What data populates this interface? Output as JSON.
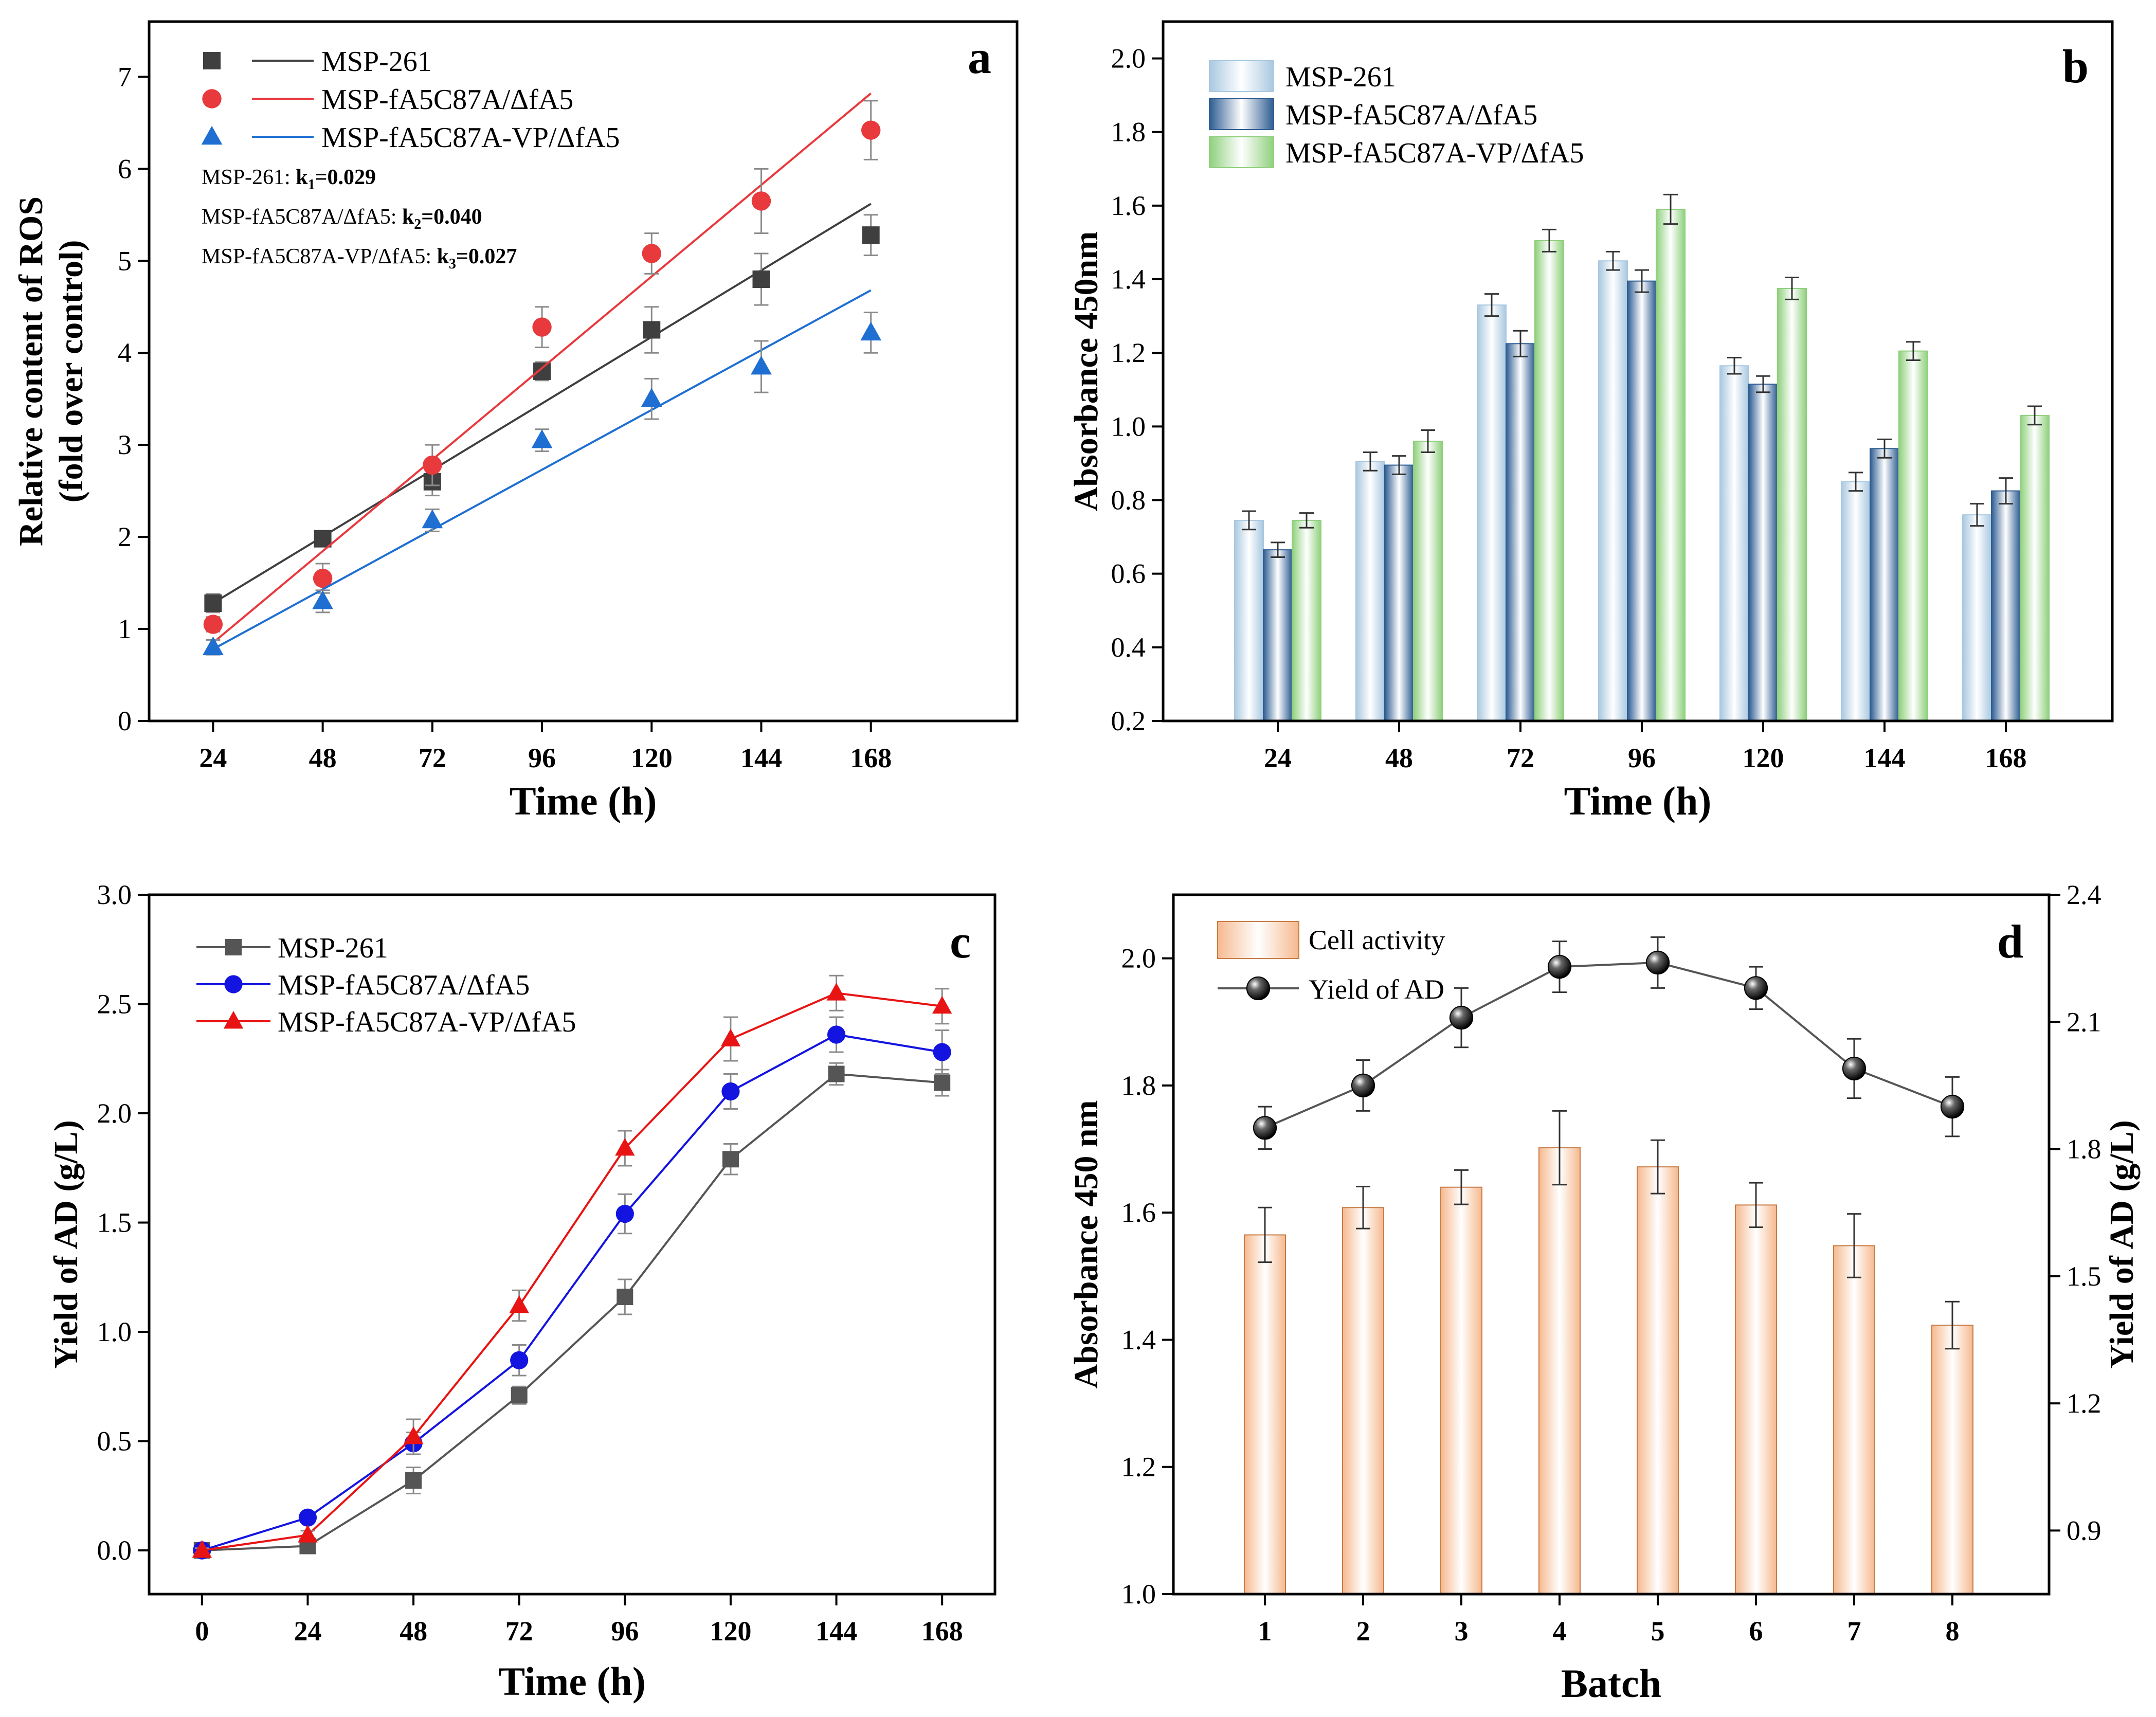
{
  "chart_data": [
    {
      "panel": "a",
      "type": "scatter",
      "title": "",
      "xlabel": "Time (h)",
      "ylabel": [
        "Relative content of ROS",
        "(fold over control)"
      ],
      "xlim": [
        10,
        200
      ],
      "ylim": [
        0,
        7.6
      ],
      "xticks": [
        24,
        48,
        72,
        96,
        120,
        144,
        168
      ],
      "yticks": [
        0,
        1,
        2,
        3,
        4,
        5,
        6,
        7
      ],
      "legend_position": "top-left",
      "series": [
        {
          "name": "MSP-261",
          "color": "#3f3f3f",
          "marker": "square",
          "x": [
            24,
            48,
            72,
            96,
            120,
            144,
            168
          ],
          "y": [
            1.28,
            1.98,
            2.6,
            3.8,
            4.25,
            4.8,
            5.28
          ],
          "err": [
            0.1,
            0.08,
            0.15,
            0.1,
            0.25,
            0.28,
            0.22
          ],
          "fit": [
            1.28,
            5.62
          ]
        },
        {
          "name": "MSP-fA5C87A/ΔfA5",
          "color": "#e8393d",
          "marker": "circle",
          "x": [
            24,
            48,
            72,
            96,
            120,
            144,
            168
          ],
          "y": [
            1.05,
            1.55,
            2.78,
            4.28,
            5.08,
            5.65,
            6.42
          ],
          "err": [
            0.08,
            0.16,
            0.22,
            0.22,
            0.22,
            0.35,
            0.32
          ],
          "fit": [
            0.85,
            6.82
          ]
        },
        {
          "name": "MSP-fA5C87A-VP/ΔfA5",
          "color": "#1f6fd2",
          "marker": "triangle",
          "x": [
            24,
            48,
            72,
            96,
            120,
            144,
            168
          ],
          "y": [
            0.8,
            1.3,
            2.18,
            3.05,
            3.5,
            3.85,
            4.22
          ],
          "err": [
            0.08,
            0.12,
            0.12,
            0.12,
            0.22,
            0.28,
            0.22
          ],
          "fit": [
            0.78,
            4.68
          ]
        }
      ],
      "annotations": [
        {
          "prefix": "MSP-261: ",
          "k": "k",
          "sub": "1",
          "value": "=0.029"
        },
        {
          "prefix": "MSP-fA5C87A/ΔfA5: ",
          "k": "k",
          "sub": "2",
          "value": "=0.040"
        },
        {
          "prefix": "MSP-fA5C87A-VP/ΔfA5: ",
          "k": "k",
          "sub": "3",
          "value": "=0.027"
        }
      ]
    },
    {
      "panel": "b",
      "type": "bar",
      "title": "",
      "xlabel": "Time (h)",
      "ylabel": "Absorbance 450nm",
      "ylim": [
        0.2,
        2.1
      ],
      "yticks": [
        "0.2",
        "0.4",
        "0.6",
        "0.8",
        "1.0",
        "1.2",
        "1.4",
        "1.6",
        "1.8",
        "2.0"
      ],
      "categories": [
        "24",
        "48",
        "72",
        "96",
        "120",
        "144",
        "168"
      ],
      "legend_position": "top-left",
      "series": [
        {
          "name": "MSP-261",
          "color": "#a9c8e0",
          "values": [
            0.745,
            0.905,
            1.33,
            1.45,
            1.165,
            0.85,
            0.76
          ],
          "err": [
            0.025,
            0.025,
            0.03,
            0.025,
            0.022,
            0.025,
            0.03
          ]
        },
        {
          "name": "MSP-fA5C87A/ΔfA5",
          "color": "#2d5c92",
          "values": [
            0.665,
            0.895,
            1.225,
            1.395,
            1.115,
            0.94,
            0.825
          ],
          "err": [
            0.02,
            0.025,
            0.035,
            0.03,
            0.022,
            0.025,
            0.035
          ]
        },
        {
          "name": "MSP-fA5C87A-VP/ΔfA5",
          "color": "#8fd07c",
          "values": [
            0.745,
            0.96,
            1.505,
            1.59,
            1.375,
            1.205,
            1.03
          ],
          "err": [
            0.02,
            0.03,
            0.03,
            0.04,
            0.03,
            0.025,
            0.025
          ]
        }
      ]
    },
    {
      "panel": "c",
      "type": "line",
      "title": "",
      "xlabel": "Time (h)",
      "ylabel": "Yield of AD (g/L)",
      "xlim": [
        -12,
        180
      ],
      "ylim": [
        -0.2,
        3.0
      ],
      "xticks": [
        0,
        24,
        48,
        72,
        96,
        120,
        144,
        168
      ],
      "yticks": [
        "0.0",
        "0.5",
        "1.0",
        "1.5",
        "2.0",
        "2.5",
        "3.0"
      ],
      "legend_position": "top-left",
      "series": [
        {
          "name": "MSP-261",
          "color": "#555555",
          "marker": "square",
          "x": [
            0,
            24,
            48,
            72,
            96,
            120,
            144,
            168
          ],
          "y": [
            0.0,
            0.02,
            0.32,
            0.71,
            1.16,
            1.79,
            2.18,
            2.14
          ],
          "err": [
            0.01,
            0.02,
            0.06,
            0.04,
            0.08,
            0.07,
            0.05,
            0.06
          ]
        },
        {
          "name": "MSP-fA5C87A/ΔfA5",
          "color": "#1414e0",
          "marker": "circle",
          "x": [
            0,
            24,
            48,
            72,
            96,
            120,
            144,
            168
          ],
          "y": [
            0.0,
            0.15,
            0.49,
            0.87,
            1.54,
            2.1,
            2.36,
            2.28
          ],
          "err": [
            0.01,
            0.02,
            0.05,
            0.07,
            0.09,
            0.08,
            0.08,
            0.1
          ]
        },
        {
          "name": "MSP-fA5C87A-VP/ΔfA5",
          "color": "#e81414",
          "marker": "triangle",
          "x": [
            0,
            24,
            48,
            72,
            96,
            120,
            144,
            168
          ],
          "y": [
            0.0,
            0.07,
            0.52,
            1.12,
            1.84,
            2.34,
            2.55,
            2.49
          ],
          "err": [
            0.01,
            0.02,
            0.08,
            0.07,
            0.08,
            0.1,
            0.08,
            0.08
          ]
        }
      ]
    },
    {
      "panel": "d",
      "type": "bar",
      "title": "",
      "xlabel": "Batch",
      "ylabel": "Absorbance 450 nm",
      "y2label": "Yield of AD (g/L)",
      "ylim": [
        1.0,
        2.1
      ],
      "yticks": [
        "1.0",
        "1.2",
        "1.4",
        "1.6",
        "1.8",
        "2.0"
      ],
      "y2lim": [
        0.75,
        2.4
      ],
      "y2ticks": [
        "0.9",
        "1.2",
        "1.5",
        "1.8",
        "2.1",
        "2.4"
      ],
      "categories": [
        "1",
        "2",
        "3",
        "4",
        "5",
        "6",
        "7",
        "8"
      ],
      "legend_position": "top-left",
      "bars": {
        "name": "Cell activity",
        "color": "#f6b98f",
        "values": [
          1.565,
          1.608,
          1.64,
          1.702,
          1.672,
          1.612,
          1.548,
          1.423
        ],
        "err": [
          0.043,
          0.033,
          0.027,
          0.058,
          0.042,
          0.035,
          0.05,
          0.037
        ]
      },
      "line": {
        "name": "Yield of AD",
        "color": "#555555",
        "marker": "sphere",
        "axis": "right",
        "values": [
          1.85,
          1.95,
          2.11,
          2.23,
          2.24,
          2.18,
          1.99,
          1.9
        ],
        "err": [
          0.05,
          0.06,
          0.07,
          0.06,
          0.06,
          0.05,
          0.07,
          0.07
        ]
      }
    }
  ],
  "panel_letters": [
    "a",
    "b",
    "c",
    "d"
  ]
}
